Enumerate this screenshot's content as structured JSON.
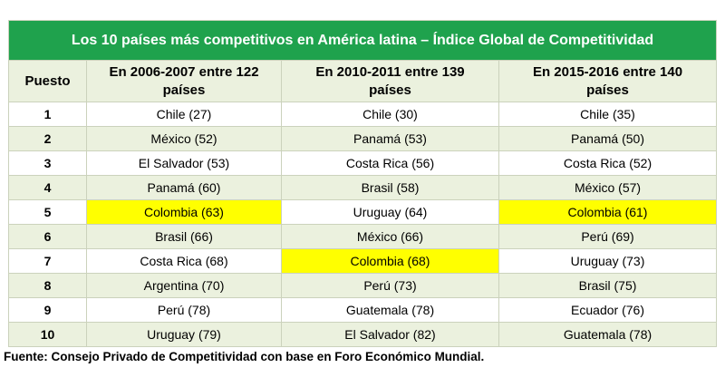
{
  "chart_data": {
    "type": "table",
    "title": "Los 10 países más competitivos en América latina – Índice Global de Competitividad",
    "columns": [
      "Puesto",
      "En 2006-2007 entre 122 países",
      "En 2010-2011 entre 139 países",
      "En 2015-2016 entre 140 países"
    ],
    "rows": [
      {
        "puesto": "1",
        "cells": [
          {
            "text": "Chile (27)",
            "highlight": false
          },
          {
            "text": "Chile (30)",
            "highlight": false
          },
          {
            "text": "Chile (35)",
            "highlight": false
          }
        ]
      },
      {
        "puesto": "2",
        "cells": [
          {
            "text": "México (52)",
            "highlight": false
          },
          {
            "text": "Panamá (53)",
            "highlight": false
          },
          {
            "text": "Panamá (50)",
            "highlight": false
          }
        ]
      },
      {
        "puesto": "3",
        "cells": [
          {
            "text": "El Salvador (53)",
            "highlight": false
          },
          {
            "text": "Costa Rica (56)",
            "highlight": false
          },
          {
            "text": "Costa Rica (52)",
            "highlight": false
          }
        ]
      },
      {
        "puesto": "4",
        "cells": [
          {
            "text": "Panamá (60)",
            "highlight": false
          },
          {
            "text": "Brasil (58)",
            "highlight": false
          },
          {
            "text": "México (57)",
            "highlight": false
          }
        ]
      },
      {
        "puesto": "5",
        "cells": [
          {
            "text": "Colombia (63)",
            "highlight": true
          },
          {
            "text": "Uruguay (64)",
            "highlight": false
          },
          {
            "text": "Colombia (61)",
            "highlight": true
          }
        ]
      },
      {
        "puesto": "6",
        "cells": [
          {
            "text": "Brasil (66)",
            "highlight": false
          },
          {
            "text": "México (66)",
            "highlight": false
          },
          {
            "text": "Perú (69)",
            "highlight": false
          }
        ]
      },
      {
        "puesto": "7",
        "cells": [
          {
            "text": "Costa Rica (68)",
            "highlight": false
          },
          {
            "text": "Colombia (68)",
            "highlight": true
          },
          {
            "text": "Uruguay (73)",
            "highlight": false
          }
        ]
      },
      {
        "puesto": "8",
        "cells": [
          {
            "text": "Argentina (70)",
            "highlight": false
          },
          {
            "text": "Perú (73)",
            "highlight": false
          },
          {
            "text": "Brasil (75)",
            "highlight": false
          }
        ]
      },
      {
        "puesto": "9",
        "cells": [
          {
            "text": "Perú (78)",
            "highlight": false
          },
          {
            "text": "Guatemala (78)",
            "highlight": false
          },
          {
            "text": "Ecuador (76)",
            "highlight": false
          }
        ]
      },
      {
        "puesto": "10",
        "cells": [
          {
            "text": "Uruguay (79)",
            "highlight": false
          },
          {
            "text": "El Salvador (82)",
            "highlight": false
          },
          {
            "text": "Guatemala (78)",
            "highlight": false
          }
        ]
      }
    ]
  },
  "source_note": "Fuente: Consejo Privado de Competitividad con base en Foro Económico Mundial.",
  "colors": {
    "title_bg": "#1fa24d",
    "title_text": "#ffffff",
    "header_bg": "#ebf1de",
    "zebra_bg": "#ebf1de",
    "row_bg": "#ffffff",
    "highlight_bg": "#ffff00",
    "border": "#cbd2bc",
    "text": "#000000"
  }
}
